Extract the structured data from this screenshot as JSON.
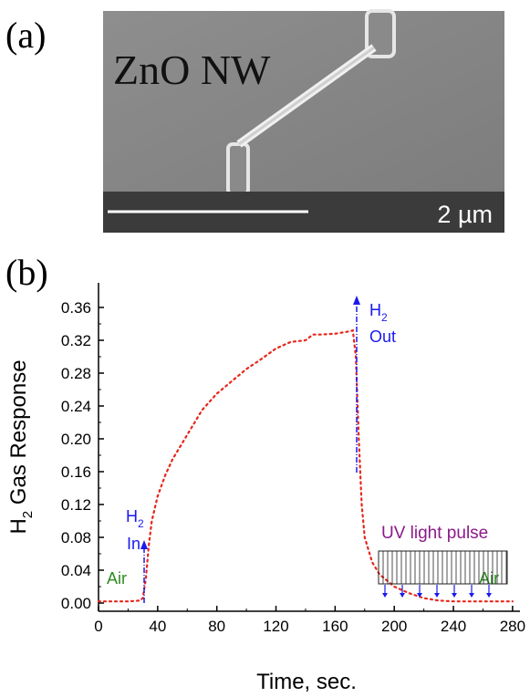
{
  "panel_a": {
    "label": "(a)",
    "text": "ZnO NW",
    "scale_label": "2 µm"
  },
  "chart_data": {
    "type": "line",
    "panel_label": "(b)",
    "x_label": "Time, sec.",
    "y_label": {
      "main": "H",
      "sub": "2",
      "rest": " Gas Response"
    },
    "x": [
      0,
      10,
      20,
      28,
      30,
      32,
      34,
      36,
      40,
      45,
      50,
      60,
      70,
      80,
      90,
      100,
      110,
      120,
      130,
      140,
      145,
      150,
      160,
      170,
      172,
      174,
      176,
      178,
      180,
      185,
      190,
      200,
      210,
      220,
      230,
      240,
      260,
      280
    ],
    "series": [
      {
        "name": "H2 Gas Response",
        "color": "#e8261b",
        "values": [
          0.002,
          0.002,
          0.002,
          0.003,
          0.006,
          0.03,
          0.07,
          0.1,
          0.13,
          0.155,
          0.175,
          0.205,
          0.235,
          0.255,
          0.27,
          0.285,
          0.297,
          0.31,
          0.318,
          0.32,
          0.327,
          0.327,
          0.328,
          0.331,
          0.332,
          0.3,
          0.2,
          0.12,
          0.08,
          0.05,
          0.035,
          0.02,
          0.012,
          0.006,
          0.003,
          0.002,
          0.002,
          0.002
        ]
      }
    ],
    "xlim": [
      0,
      285
    ],
    "xticks": [
      0,
      40,
      80,
      120,
      160,
      200,
      240,
      280
    ],
    "ylim": [
      -0.01,
      0.39
    ],
    "yticks": [
      {
        "value": 0,
        "label": "0.00"
      },
      {
        "value": 0.04,
        "label": "0.04"
      },
      {
        "value": 0.08,
        "label": "0.08"
      },
      {
        "value": 0.12,
        "label": "0.12"
      },
      {
        "value": 0.16,
        "label": "0.16"
      },
      {
        "value": 0.2,
        "label": "0.20"
      },
      {
        "value": 0.24,
        "label": "0.24"
      },
      {
        "value": 0.28,
        "label": "0.28"
      },
      {
        "value": 0.32,
        "label": "0.32"
      },
      {
        "value": 0.36,
        "label": "0.36"
      }
    ],
    "annotations": {
      "in": {
        "main": "H",
        "sub": "2",
        "line2": "In"
      },
      "out": {
        "main": "H",
        "sub": "2",
        "line2": "Out"
      },
      "air_left": "Air",
      "air_right": "Air",
      "uv": "UV light pulse"
    }
  }
}
